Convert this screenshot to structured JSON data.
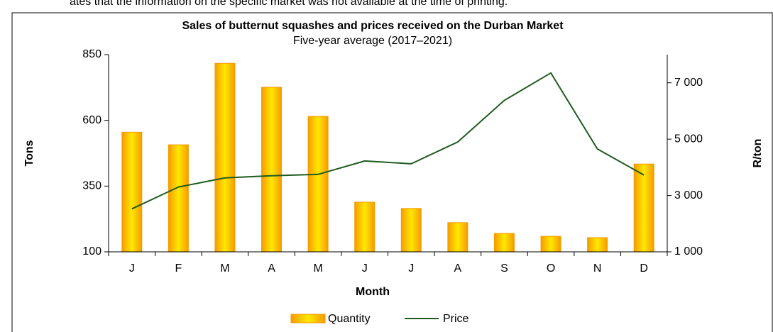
{
  "page_note": "ates that the information on the specific market was not available at the time of printing.",
  "chart_data": {
    "type": "bar_line",
    "title": "Sales of butternut squashes and prices received on the Durban Market",
    "subtitle": "Five-year average (2017–2021)",
    "x_label": "Month",
    "y_label": "Tons",
    "y2_label": "R/ton",
    "categories": [
      "J",
      "F",
      "M",
      "A",
      "M",
      "J",
      "J",
      "A",
      "S",
      "O",
      "N",
      "D"
    ],
    "series": [
      {
        "name": "Quantity",
        "kind": "bar",
        "color": "#f59b00",
        "values": [
          555,
          507,
          817,
          726,
          615,
          289,
          265,
          211,
          170,
          159,
          154,
          434
        ]
      },
      {
        "name": "Price",
        "kind": "line",
        "axis": "y2",
        "color": "#1f5b1f",
        "values": [
          2525,
          3300,
          3625,
          3700,
          3750,
          4225,
          4125,
          4900,
          6375,
          7350,
          4650,
          3725
        ]
      }
    ],
    "ylim": [
      100,
      850
    ],
    "yticks": [
      100,
      350,
      600,
      850
    ],
    "y2lim": [
      1000,
      8000
    ],
    "y2ticks": [
      {
        "value": 1000,
        "label": "1 000"
      },
      {
        "value": 3000,
        "label": "3 000"
      },
      {
        "value": 5000,
        "label": "5 000"
      },
      {
        "value": 7000,
        "label": "7 000"
      }
    ],
    "legend": "bottom"
  }
}
